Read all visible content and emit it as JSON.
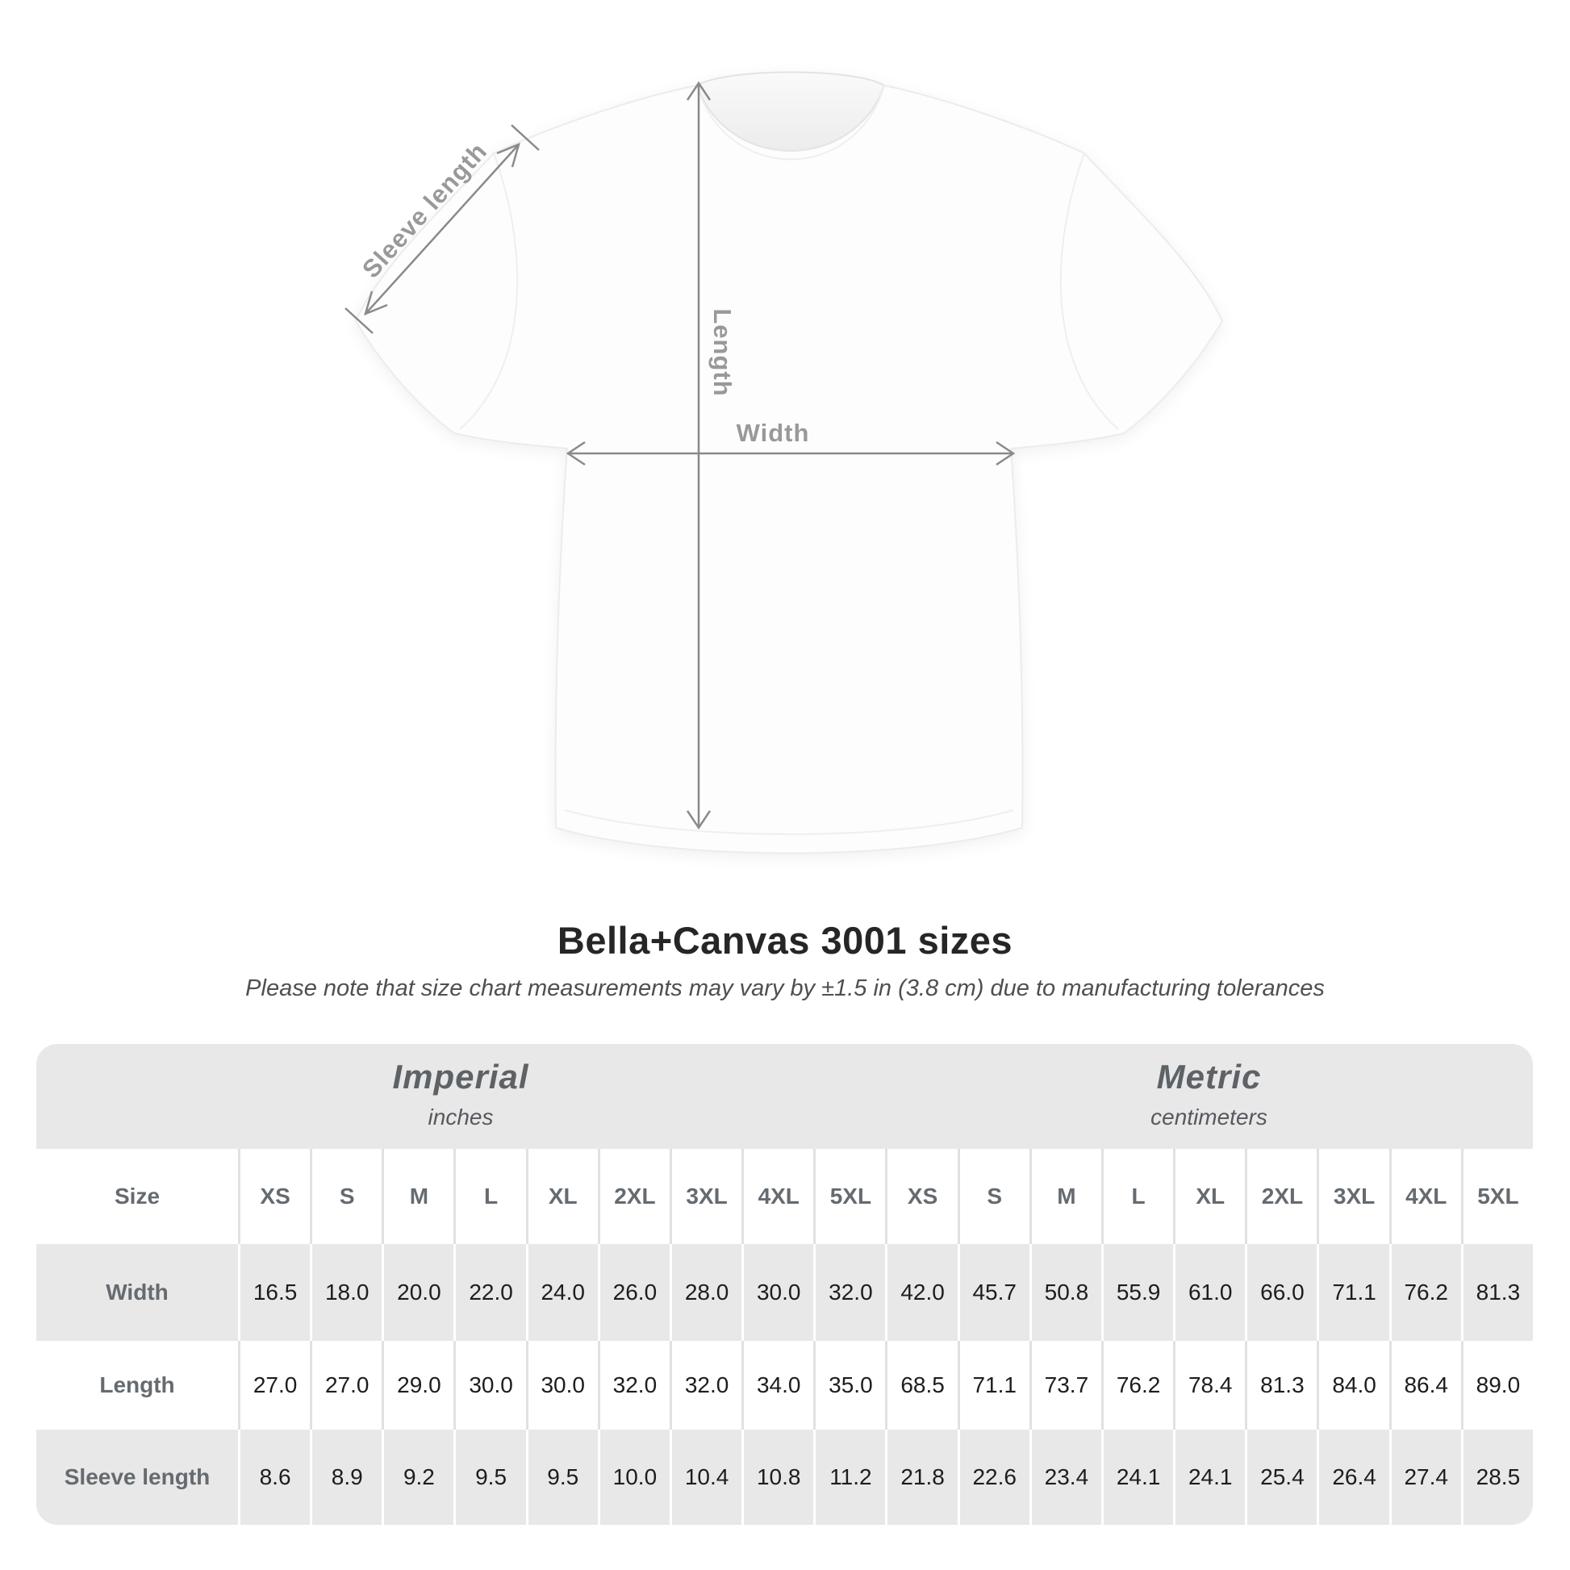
{
  "diagram": {
    "labels": {
      "sleeve_length": "Sleeve length",
      "length": "Length",
      "width": "Width"
    },
    "arrow_color": "#8a8a8a",
    "label_color": "#97999b"
  },
  "title": "Bella+Canvas 3001 sizes",
  "subtitle": "Please note that size chart measurements may vary by ±1.5 in (3.8 cm) due to manufacturing tolerances",
  "size_table": {
    "corner_label": "Size",
    "unit_groups": [
      {
        "name": "Imperial",
        "unit": "inches"
      },
      {
        "name": "Metric",
        "unit": "centimeters"
      }
    ],
    "sizes": [
      "XS",
      "S",
      "M",
      "L",
      "XL",
      "2XL",
      "3XL",
      "4XL",
      "5XL"
    ],
    "rows": [
      {
        "label": "Width",
        "imperial": [
          "16.5",
          "18.0",
          "20.0",
          "22.0",
          "24.0",
          "26.0",
          "28.0",
          "30.0",
          "32.0"
        ],
        "metric": [
          "42.0",
          "45.7",
          "50.8",
          "55.9",
          "61.0",
          "66.0",
          "71.1",
          "76.2",
          "81.3"
        ]
      },
      {
        "label": "Length",
        "imperial": [
          "27.0",
          "27.0",
          "29.0",
          "30.0",
          "30.0",
          "32.0",
          "32.0",
          "34.0",
          "35.0"
        ],
        "metric": [
          "68.5",
          "71.1",
          "73.7",
          "76.2",
          "78.4",
          "81.3",
          "84.0",
          "86.4",
          "89.0"
        ]
      },
      {
        "label": "Sleeve length",
        "imperial": [
          "8.6",
          "8.9",
          "9.2",
          "9.5",
          "9.5",
          "10.0",
          "10.4",
          "10.8",
          "11.2"
        ],
        "metric": [
          "21.8",
          "22.6",
          "23.4",
          "24.1",
          "24.1",
          "25.4",
          "26.4",
          "27.4",
          "28.5"
        ]
      }
    ],
    "colors": {
      "band_background": "#e8e8e9",
      "alt_row_background": "#e8e8e8",
      "separator_on_white": "#e2e1e1",
      "separator_on_gray": "#ffffff",
      "header_text": "#656b70",
      "value_text": "#1d1d1d"
    }
  },
  "chart_data": {
    "type": "table",
    "title": "Bella+Canvas 3001 sizes",
    "subtitle": "Please note that size chart measurements may vary by ±1.5 in (3.8 cm) due to manufacturing tolerances",
    "column_groups": [
      "Imperial (inches)",
      "Metric (centimeters)"
    ],
    "sizes": [
      "XS",
      "S",
      "M",
      "L",
      "XL",
      "2XL",
      "3XL",
      "4XL",
      "5XL"
    ],
    "rows": [
      {
        "label": "Width",
        "imperial": [
          16.5,
          18.0,
          20.0,
          22.0,
          24.0,
          26.0,
          28.0,
          30.0,
          32.0
        ],
        "metric": [
          42.0,
          45.7,
          50.8,
          55.9,
          61.0,
          66.0,
          71.1,
          76.2,
          81.3
        ]
      },
      {
        "label": "Length",
        "imperial": [
          27.0,
          27.0,
          29.0,
          30.0,
          30.0,
          32.0,
          32.0,
          34.0,
          35.0
        ],
        "metric": [
          68.5,
          71.1,
          73.7,
          76.2,
          78.4,
          81.3,
          84.0,
          86.4,
          89.0
        ]
      },
      {
        "label": "Sleeve length",
        "imperial": [
          8.6,
          8.9,
          9.2,
          9.5,
          9.5,
          10.0,
          10.4,
          10.8,
          11.2
        ],
        "metric": [
          21.8,
          22.6,
          23.4,
          24.1,
          24.1,
          25.4,
          26.4,
          27.4,
          28.5
        ]
      }
    ]
  }
}
